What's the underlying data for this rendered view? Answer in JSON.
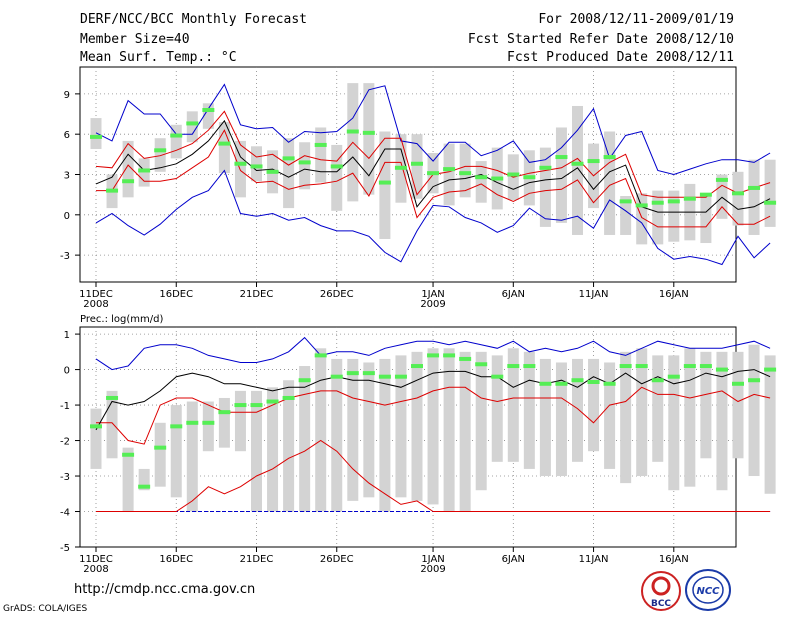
{
  "header": {
    "title": "DERF/NCC/BCC Monthly Forecast",
    "member_size": "Member Size=40",
    "variable": "Mean Surf. Temp.: °C",
    "period": "For 2008/12/11-2009/01/19",
    "start_ref": "Fcst Started Refer Date 2008/12/10",
    "produced": "Fcst Produced Date 2008/12/11"
  },
  "footer": {
    "url": "http://cmdp.ncc.cma.gov.cn",
    "credit": "GrADS: COLA/IGES",
    "logo_left_text": "BCC",
    "logo_right_text": "NCC"
  },
  "colors": {
    "box": "#d3d3d3",
    "median": "#55ee55",
    "mean": "#000000",
    "sd": "#dd0000",
    "range": "#0000cc",
    "grid": "#888888"
  },
  "chart_data": [
    {
      "type": "box-ensemble",
      "title": "Mean Surf. Temp.: °C",
      "ylim": [
        -5,
        11
      ],
      "yticks": [
        -3,
        0,
        3,
        6,
        9
      ],
      "x_tick_labels": [
        {
          "day": 0,
          "label": "11DEC",
          "sub": "2008"
        },
        {
          "day": 5,
          "label": "16DEC",
          "sub": ""
        },
        {
          "day": 10,
          "label": "21DEC",
          "sub": ""
        },
        {
          "day": 15,
          "label": "26DEC",
          "sub": ""
        },
        {
          "day": 21,
          "label": "1JAN",
          "sub": "2009"
        },
        {
          "day": 26,
          "label": "6JAN",
          "sub": ""
        },
        {
          "day": 31,
          "label": "11JAN",
          "sub": ""
        },
        {
          "day": 36,
          "label": "16JAN",
          "sub": ""
        }
      ],
      "mean": [
        2.3,
        2.8,
        4.5,
        3.3,
        3.5,
        3.8,
        4.5,
        5.5,
        7.0,
        4.3,
        3.3,
        3.4,
        2.8,
        3.4,
        3.2,
        3.2,
        4.3,
        2.9,
        4.9,
        4.9,
        0.6,
        2.1,
        2.6,
        2.7,
        3.0,
        2.4,
        1.9,
        2.4,
        2.6,
        2.7,
        3.5,
        1.9,
        3.2,
        3.7,
        0.6,
        0.2,
        0.2,
        0.2,
        0.2,
        1.3,
        0.4,
        0.6,
        1.2
      ],
      "sd_upper": [
        3.6,
        3.5,
        5.3,
        4.2,
        4.4,
        4.8,
        5.3,
        6.3,
        7.7,
        5.2,
        4.3,
        4.5,
        3.7,
        4.4,
        4.1,
        4.0,
        5.4,
        4.2,
        5.7,
        5.7,
        1.5,
        3.0,
        3.2,
        3.6,
        3.6,
        3.3,
        2.8,
        3.1,
        3.3,
        3.5,
        4.2,
        2.9,
        3.9,
        4.5,
        1.5,
        1.3,
        1.3,
        1.3,
        1.3,
        2.2,
        1.6,
        2.0,
        2.4
      ],
      "sd_lower": [
        1.8,
        1.8,
        3.7,
        2.5,
        2.5,
        2.7,
        3.5,
        4.3,
        6.3,
        3.3,
        2.4,
        2.5,
        1.9,
        2.2,
        2.3,
        2.5,
        3.1,
        1.4,
        3.9,
        3.9,
        -0.2,
        1.3,
        1.7,
        1.8,
        2.3,
        1.5,
        1.0,
        1.6,
        1.8,
        1.9,
        2.6,
        0.9,
        2.2,
        2.7,
        -0.2,
        -0.9,
        -0.9,
        -0.9,
        -0.9,
        0.6,
        -0.7,
        -0.7,
        -0.1
      ],
      "max": [
        6.1,
        5.5,
        8.5,
        7.5,
        7.5,
        6.0,
        6.0,
        7.9,
        9.7,
        6.7,
        6.4,
        6.5,
        5.4,
        6.2,
        6.1,
        6.2,
        7.2,
        9.3,
        9.6,
        5.5,
        5.3,
        4.0,
        5.4,
        5.4,
        4.4,
        4.8,
        5.5,
        3.9,
        4.1,
        5.0,
        6.3,
        7.9,
        4.2,
        5.9,
        6.2,
        3.3,
        3.0,
        3.4,
        3.8,
        4.1,
        4.1,
        3.9,
        4.6
      ],
      "min": [
        -0.6,
        0.1,
        -0.8,
        -1.5,
        -0.7,
        0.4,
        1.3,
        1.8,
        3.3,
        0.1,
        -0.1,
        0.1,
        -0.4,
        -0.2,
        -0.8,
        -1.2,
        -1.2,
        -1.6,
        -2.8,
        -3.5,
        -1.2,
        0.7,
        0.6,
        -0.2,
        -0.6,
        -1.3,
        -0.8,
        0.5,
        -0.3,
        -0.4,
        -0.1,
        -1.0,
        1.1,
        0.3,
        -0.6,
        -2.5,
        -3.3,
        -3.1,
        -3.3,
        -3.7,
        -1.6,
        -3.2,
        -2.1
      ],
      "median": [
        5.8,
        1.8,
        2.5,
        3.3,
        4.8,
        5.9,
        6.8,
        7.8,
        5.3,
        3.8,
        3.6,
        3.2,
        4.2,
        3.9,
        5.2,
        3.6,
        6.2,
        6.1,
        2.4,
        3.5,
        3.8,
        3.1,
        3.4,
        3.1,
        2.8,
        2.7,
        3.0,
        2.8,
        3.5,
        4.3,
        3.8,
        4.0,
        4.3,
        1.0,
        0.7,
        0.9,
        1.0,
        1.2,
        1.5,
        2.6,
        1.6,
        2.0,
        0.9
      ],
      "box_high": [
        7.2,
        3.0,
        5.5,
        4.2,
        5.7,
        6.7,
        7.7,
        8.3,
        6.9,
        5.5,
        5.1,
        4.8,
        5.7,
        5.4,
        6.5,
        5.2,
        9.8,
        9.8,
        6.2,
        6.0,
        6.0,
        4.6,
        5.3,
        5.3,
        4.0,
        5.0,
        4.5,
        4.8,
        5.0,
        6.5,
        8.1,
        5.3,
        6.2,
        1.4,
        1.6,
        1.8,
        1.8,
        2.3,
        1.6,
        3.0,
        3.2,
        4.1,
        4.1
      ],
      "box_low": [
        4.9,
        0.5,
        1.3,
        2.1,
        3.2,
        4.2,
        5.4,
        6.4,
        3.1,
        1.3,
        2.5,
        1.6,
        0.5,
        1.9,
        2.4,
        0.3,
        1.0,
        1.5,
        -1.8,
        0.9,
        1.2,
        1.6,
        0.7,
        1.3,
        0.9,
        0.4,
        1.1,
        0.7,
        -0.9,
        -0.6,
        -1.5,
        0.5,
        -1.5,
        -1.5,
        -2.2,
        -2.2,
        -2.0,
        -1.9,
        -2.1,
        -0.3,
        -0.8,
        -1.5,
        -0.9
      ]
    },
    {
      "type": "box-ensemble",
      "title": "Prec.: log(mm/d)",
      "ylim": [
        -5,
        1.2
      ],
      "yticks": [
        -5,
        -4,
        -3,
        -2,
        -1,
        0,
        1
      ],
      "x_tick_labels": [
        {
          "day": 0,
          "label": "11DEC",
          "sub": "2008"
        },
        {
          "day": 5,
          "label": "16DEC",
          "sub": ""
        },
        {
          "day": 10,
          "label": "21DEC",
          "sub": ""
        },
        {
          "day": 15,
          "label": "26DEC",
          "sub": ""
        },
        {
          "day": 21,
          "label": "1JAN",
          "sub": "2009"
        },
        {
          "day": 26,
          "label": "6JAN",
          "sub": ""
        },
        {
          "day": 31,
          "label": "11JAN",
          "sub": ""
        },
        {
          "day": 36,
          "label": "16JAN",
          "sub": ""
        }
      ],
      "mean": [
        -1.7,
        -0.9,
        -1.0,
        -0.9,
        -0.6,
        -0.2,
        -0.1,
        -0.2,
        -0.4,
        -0.4,
        -0.5,
        -0.6,
        -0.5,
        -0.5,
        -0.3,
        -0.2,
        -0.3,
        -0.3,
        -0.4,
        -0.5,
        -0.3,
        -0.1,
        -0.05,
        -0.05,
        -0.2,
        -0.2,
        -0.5,
        -0.3,
        -0.4,
        -0.3,
        -0.5,
        -0.2,
        -0.4,
        -0.1,
        -0.4,
        -0.2,
        -0.4,
        -0.3,
        -0.1,
        -0.2,
        -0.05,
        0.0,
        -0.2
      ],
      "sd_upper": [
        -1.5,
        -1.5,
        -2.0,
        -2.1,
        -1.0,
        -0.8,
        -0.8,
        -1.0,
        -1.2,
        -1.2,
        -1.2,
        -1.0,
        -0.8,
        -0.7,
        -0.6,
        -0.6,
        -0.8,
        -0.9,
        -1.0,
        -0.9,
        -0.8,
        -0.6,
        -0.5,
        -0.5,
        -0.8,
        -0.9,
        -0.8,
        -0.8,
        -0.8,
        -0.8,
        -1.1,
        -1.5,
        -1.0,
        -0.9,
        -0.5,
        -0.7,
        -0.7,
        -0.8,
        -0.7,
        -0.6,
        -0.9,
        -0.7,
        -0.8
      ],
      "sd_lower": [
        -4.0,
        -4.0,
        -4.0,
        -4.0,
        -4.0,
        -4.0,
        -3.7,
        -3.3,
        -3.5,
        -3.3,
        -3.0,
        -2.8,
        -2.5,
        -2.3,
        -2.0,
        -2.3,
        -2.8,
        -3.2,
        -3.5,
        -3.8,
        -3.7,
        -4.0,
        -4.0,
        -4.0,
        -4.0,
        -4.0,
        -4.0,
        -4.0,
        -4.0,
        -4.0,
        -4.0,
        -4.0,
        -4.0,
        -4.0,
        -4.0,
        -4.0,
        -4.0,
        -4.0,
        -4.0,
        -4.0,
        -4.0,
        -4.0,
        -4.0
      ],
      "max": [
        0.3,
        0.0,
        0.1,
        0.6,
        0.7,
        0.7,
        0.6,
        0.4,
        0.3,
        0.2,
        0.2,
        0.3,
        0.5,
        0.9,
        0.4,
        0.5,
        0.5,
        0.4,
        0.6,
        0.7,
        0.8,
        0.8,
        0.7,
        0.8,
        0.7,
        0.6,
        0.8,
        0.5,
        0.6,
        0.5,
        0.6,
        0.8,
        0.5,
        0.4,
        0.6,
        0.8,
        0.7,
        0.6,
        0.6,
        0.6,
        0.7,
        0.8,
        0.6
      ],
      "min": [
        -4.0,
        -4.0,
        -4.0,
        -4.0,
        -4.0,
        -4.0,
        -4.0,
        -4.0,
        -4.0,
        -4.0,
        -4.0,
        -4.0,
        -4.0,
        -4.0,
        -4.0,
        -4.0,
        -4.0,
        -4.0,
        -4.0,
        -4.0,
        -4.0,
        -4.0,
        -4.0,
        -4.0,
        -4.0,
        -4.0,
        -4.0,
        -4.0,
        -4.0,
        -4.0,
        -4.0,
        -4.0,
        -4.0,
        -4.0,
        -4.0,
        -4.0,
        -4.0,
        -4.0,
        -4.0,
        -4.0,
        -4.0,
        -4.0,
        -4.0
      ],
      "median": [
        -1.6,
        -0.8,
        -2.4,
        -3.3,
        -2.2,
        -1.6,
        -1.5,
        -1.5,
        -1.2,
        -1.0,
        -1.0,
        -0.9,
        -0.8,
        -0.3,
        0.4,
        -0.2,
        -0.1,
        -0.1,
        -0.2,
        -0.2,
        0.1,
        0.4,
        0.4,
        0.3,
        0.15,
        -0.2,
        0.1,
        0.1,
        -0.4,
        -0.4,
        -0.3,
        -0.35,
        -0.4,
        0.1,
        0.1,
        -0.3,
        -0.2,
        0.1,
        0.1,
        0.0,
        -0.4,
        -0.3,
        0.0
      ],
      "box_high": [
        -1.1,
        -0.6,
        -2.2,
        -2.8,
        -1.5,
        -1.0,
        -0.9,
        -0.9,
        -0.8,
        -0.6,
        -0.6,
        -0.5,
        -0.3,
        0.1,
        0.6,
        0.3,
        0.3,
        0.2,
        0.3,
        0.4,
        0.5,
        0.6,
        0.6,
        0.5,
        0.5,
        0.4,
        0.6,
        0.5,
        0.3,
        0.2,
        0.3,
        0.3,
        0.2,
        0.5,
        0.6,
        0.4,
        0.4,
        0.6,
        0.5,
        0.5,
        0.5,
        0.7,
        0.4
      ],
      "box_low": [
        -2.8,
        -2.5,
        -4.0,
        -3.4,
        -3.3,
        -3.6,
        -4.0,
        -2.3,
        -2.2,
        -2.3,
        -4.0,
        -4.0,
        -4.0,
        -4.0,
        -4.0,
        -4.0,
        -3.7,
        -3.6,
        -4.0,
        -3.6,
        -3.7,
        -3.8,
        -4.0,
        -4.0,
        -3.4,
        -2.6,
        -2.6,
        -2.8,
        -3.0,
        -3.0,
        -2.6,
        -2.3,
        -2.8,
        -3.2,
        -3.0,
        -2.6,
        -3.4,
        -3.3,
        -2.5,
        -3.4,
        -2.5,
        -3.0,
        -3.5
      ]
    }
  ]
}
